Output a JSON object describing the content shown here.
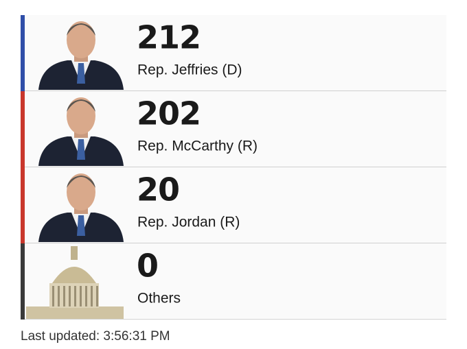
{
  "rows": [
    {
      "votes": 212,
      "label": "Rep. Jeffries (D)",
      "color": "#2f4ea8",
      "image": "portrait"
    },
    {
      "votes": 202,
      "label": "Rep. McCarthy (R)",
      "color": "#c9372c",
      "image": "portrait"
    },
    {
      "votes": 20,
      "label": "Rep. Jordan (R)",
      "color": "#c9372c",
      "image": "portrait"
    },
    {
      "votes": 0,
      "label": "Others",
      "color": "#3a3a3a",
      "image": "capitol"
    }
  ],
  "footer": "Last updated: 3:56:31 PM"
}
